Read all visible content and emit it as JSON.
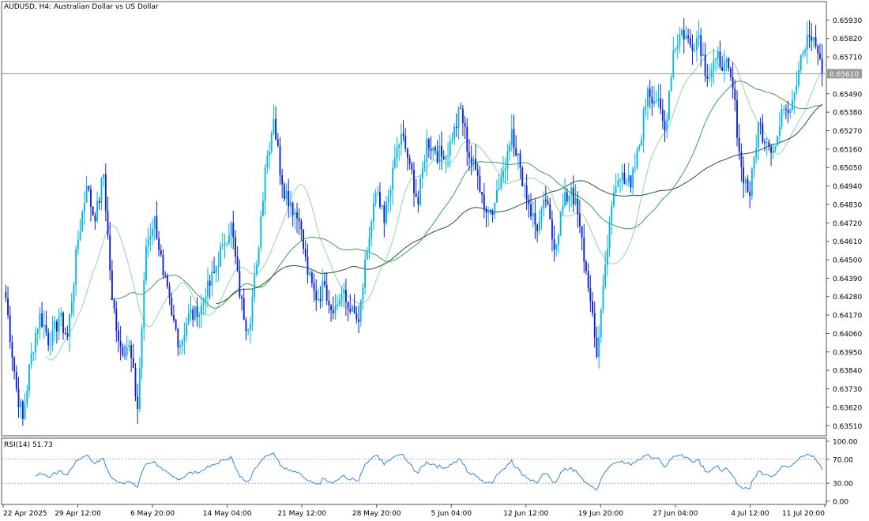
{
  "header": {
    "title": "AUDUSD, H4:  Australian Dollar vs US Dollar",
    "current_price_label": "0.65610"
  },
  "rsi_panel": {
    "title": "RSI(14) 51.73",
    "levels": [
      "100.00",
      "70.00",
      "30.00",
      "0.00"
    ]
  },
  "colors": {
    "bull": "#00b8e6",
    "bear": "#0d1fd6",
    "ma_fast": "#90d8a8",
    "ma_mid": "#3aa05c",
    "ma_slow": "#1f5a34",
    "rsi": "#2d8ae0",
    "price_line": "#909090"
  },
  "chart_data": [
    {
      "type": "candlestick",
      "title": "AUDUSD, H4:  Australian Dollar vs US Dollar",
      "ylim": [
        0.6345,
        0.6604
      ],
      "y_ticks": [
        "0.65930",
        "0.65820",
        "0.65710",
        "0.65490",
        "0.65380",
        "0.65270",
        "0.65160",
        "0.65050",
        "0.64940",
        "0.64830",
        "0.64720",
        "0.64610",
        "0.64500",
        "0.64390",
        "0.64280",
        "0.64170",
        "0.64060",
        "0.63950",
        "0.63840",
        "0.63730",
        "0.63620",
        "0.63510"
      ],
      "x_ticks": [
        "22 Apr 2025",
        "29 Apr 12:00",
        "6 May 20:00",
        "14 May 04:00",
        "21 May 12:00",
        "28 May 20:00",
        "5 Jun 04:00",
        "12 Jun 12:00",
        "19 Jun 20:00",
        "27 Jun 04:00",
        "4 Jul 12:00",
        "11 Jul 20:00"
      ],
      "current_price": 0.6561,
      "price_anchors": [
        [
          0,
          0.6427
        ],
        [
          5,
          0.6373
        ],
        [
          8,
          0.6355
        ],
        [
          12,
          0.6394
        ],
        [
          16,
          0.6418
        ],
        [
          21,
          0.6399
        ],
        [
          25,
          0.6416
        ],
        [
          29,
          0.6404
        ],
        [
          34,
          0.6462
        ],
        [
          38,
          0.6494
        ],
        [
          42,
          0.6473
        ],
        [
          46,
          0.6501
        ],
        [
          50,
          0.6426
        ],
        [
          54,
          0.6398
        ],
        [
          58,
          0.6399
        ],
        [
          62,
          0.6361
        ],
        [
          66,
          0.6458
        ],
        [
          70,
          0.6476
        ],
        [
          74,
          0.6441
        ],
        [
          78,
          0.6417
        ],
        [
          82,
          0.6399
        ],
        [
          86,
          0.6418
        ],
        [
          90,
          0.6416
        ],
        [
          94,
          0.6428
        ],
        [
          98,
          0.6442
        ],
        [
          102,
          0.6459
        ],
        [
          106,
          0.6472
        ],
        [
          110,
          0.6428
        ],
        [
          114,
          0.6408
        ],
        [
          118,
          0.6447
        ],
        [
          122,
          0.6505
        ],
        [
          126,
          0.6534
        ],
        [
          130,
          0.6495
        ],
        [
          134,
          0.6484
        ],
        [
          138,
          0.6473
        ],
        [
          142,
          0.6441
        ],
        [
          146,
          0.6426
        ],
        [
          150,
          0.6435
        ],
        [
          154,
          0.6418
        ],
        [
          158,
          0.643
        ],
        [
          162,
          0.6419
        ],
        [
          166,
          0.6413
        ],
        [
          170,
          0.6455
        ],
        [
          174,
          0.649
        ],
        [
          178,
          0.6472
        ],
        [
          182,
          0.6505
        ],
        [
          186,
          0.6525
        ],
        [
          190,
          0.6507
        ],
        [
          194,
          0.6483
        ],
        [
          198,
          0.6522
        ],
        [
          202,
          0.6515
        ],
        [
          206,
          0.651
        ],
        [
          210,
          0.6522
        ],
        [
          214,
          0.654
        ],
        [
          218,
          0.6511
        ],
        [
          222,
          0.65
        ],
        [
          226,
          0.6478
        ],
        [
          230,
          0.6484
        ],
        [
          234,
          0.6503
        ],
        [
          238,
          0.6528
        ],
        [
          242,
          0.6505
        ],
        [
          246,
          0.6483
        ],
        [
          250,
          0.6467
        ],
        [
          254,
          0.6485
        ],
        [
          258,
          0.6456
        ],
        [
          262,
          0.6482
        ],
        [
          266,
          0.6493
        ],
        [
          270,
          0.647
        ],
        [
          274,
          0.6433
        ],
        [
          278,
          0.6392
        ],
        [
          282,
          0.6447
        ],
        [
          286,
          0.649
        ],
        [
          290,
          0.6502
        ],
        [
          294,
          0.6493
        ],
        [
          298,
          0.6518
        ],
        [
          302,
          0.6552
        ],
        [
          306,
          0.6545
        ],
        [
          310,
          0.6527
        ],
        [
          314,
          0.6575
        ],
        [
          318,
          0.6587
        ],
        [
          322,
          0.6578
        ],
        [
          326,
          0.6584
        ],
        [
          330,
          0.6558
        ],
        [
          334,
          0.657
        ],
        [
          338,
          0.6568
        ],
        [
          342,
          0.6552
        ],
        [
          346,
          0.6505
        ],
        [
          350,
          0.6488
        ],
        [
          354,
          0.6532
        ],
        [
          358,
          0.652
        ],
        [
          362,
          0.6518
        ],
        [
          366,
          0.654
        ],
        [
          370,
          0.6545
        ],
        [
          374,
          0.6572
        ],
        [
          378,
          0.6583
        ],
        [
          382,
          0.6573
        ],
        [
          384,
          0.6561
        ]
      ],
      "series": [
        {
          "name": "",
          "kind": "ma",
          "period": 20
        },
        {
          "name": "",
          "kind": "ma",
          "period": 50
        },
        {
          "name": "",
          "kind": "ma",
          "period": 100
        }
      ]
    },
    {
      "type": "line",
      "title": "RSI(14) 51.73",
      "ylim": [
        0,
        100
      ],
      "levels": [
        70,
        30
      ],
      "series": [
        {
          "name": "RSI(14)",
          "values": [
            51.73
          ]
        }
      ]
    }
  ]
}
